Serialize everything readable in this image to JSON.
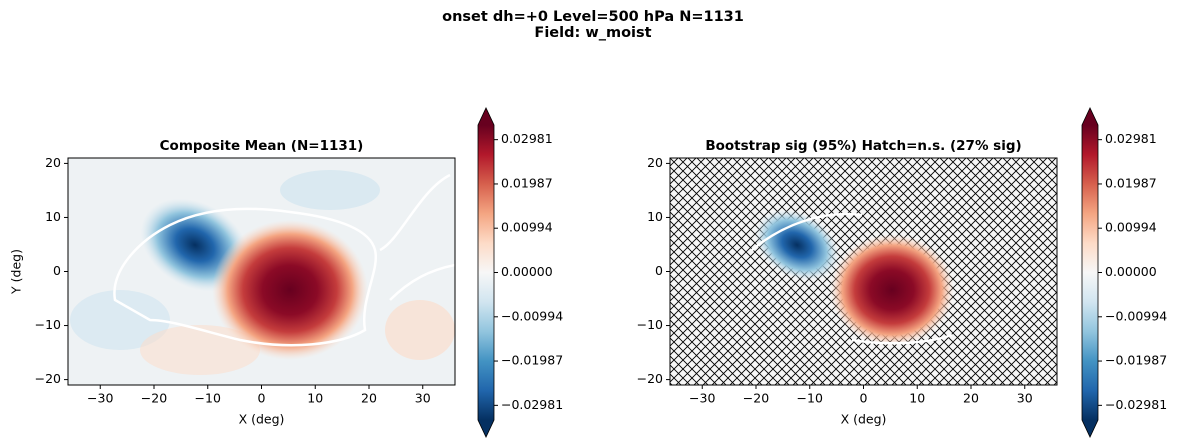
{
  "suptitle": [
    "onset  dh=+0   Level=500 hPa   N=1131",
    "Field: w_moist"
  ],
  "chart_data": [
    {
      "type": "contour",
      "title": "Composite Mean  (N=1131)",
      "xlabel": "X (deg)",
      "ylabel": "Y (deg)",
      "xlim": [
        -36,
        36
      ],
      "ylim": [
        -21,
        21
      ],
      "xticks": [
        {
          "value": -30,
          "label": "−30"
        },
        {
          "value": -20,
          "label": "−20"
        },
        {
          "value": -10,
          "label": "−10"
        },
        0,
        10,
        20,
        30
      ],
      "yticks": [
        {
          "value": -20,
          "label": "−20"
        },
        {
          "value": -10,
          "label": "−10"
        },
        0,
        10,
        20
      ],
      "clim": [
        -0.0331,
        0.0331
      ],
      "cticks": [
        {
          "value": -0.02981,
          "label": "−0.02981"
        },
        {
          "value": -0.01987,
          "label": "−0.01987"
        },
        {
          "value": -0.00994,
          "label": "−0.00994"
        },
        {
          "value": 0,
          "label": "0.00000"
        },
        0.00994,
        0.01987,
        0.02981
      ]
    },
    {
      "type": "contour",
      "title": "Bootstrap sig (95%)  Hatch=n.s.  (27% sig)",
      "xlabel": "X (deg)",
      "xlim": [
        -36,
        36
      ],
      "ylim": [
        -21,
        21
      ],
      "xticks": [
        {
          "value": -30,
          "label": "−30"
        },
        {
          "value": -20,
          "label": "−20"
        },
        {
          "value": -10,
          "label": "−10"
        },
        0,
        10,
        20,
        30
      ],
      "yticks": [
        {
          "value": -20,
          "label": "−20"
        },
        {
          "value": -10,
          "label": "−10"
        },
        0,
        10,
        20
      ],
      "clim": [
        -0.0331,
        0.0331
      ],
      "cticks": [
        {
          "value": -0.02981,
          "label": "−0.02981"
        },
        {
          "value": -0.01987,
          "label": "−0.01987"
        },
        {
          "value": -0.00994,
          "label": "−0.00994"
        },
        {
          "value": 0,
          "label": "0.00000"
        },
        0.00994,
        0.01987,
        0.02981
      ],
      "hatch": true
    }
  ]
}
